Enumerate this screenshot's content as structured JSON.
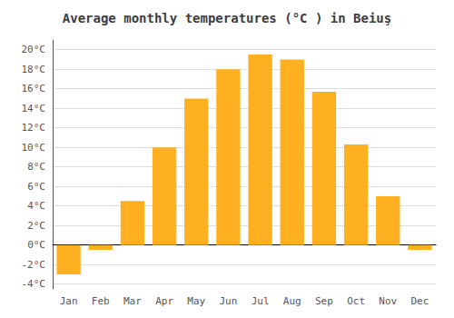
{
  "chart_data": {
    "type": "bar",
    "title": "Average monthly temperatures (°C ) in Beiuş",
    "categories": [
      "Jan",
      "Feb",
      "Mar",
      "Apr",
      "May",
      "Jun",
      "Jul",
      "Aug",
      "Sep",
      "Oct",
      "Nov",
      "Dec"
    ],
    "values": [
      -3.0,
      -0.5,
      4.5,
      10.0,
      15.0,
      18.0,
      19.5,
      19.0,
      15.7,
      10.3,
      5.0,
      -0.5
    ],
    "color": "#FFB020",
    "ylim": [
      -4.5,
      21.0
    ],
    "yticks": [
      {
        "value": -4,
        "label": "-4°C"
      },
      {
        "value": -2,
        "label": "-2°C"
      },
      {
        "value": 0,
        "label": "0°C"
      },
      {
        "value": 2,
        "label": "2°C"
      },
      {
        "value": 4,
        "label": "4°C"
      },
      {
        "value": 6,
        "label": "6°C"
      },
      {
        "value": 8,
        "label": "8°C"
      },
      {
        "value": 10,
        "label": "10°C"
      },
      {
        "value": 12,
        "label": "12°C"
      },
      {
        "value": 14,
        "label": "14°C"
      },
      {
        "value": 16,
        "label": "16°C"
      },
      {
        "value": 18,
        "label": "18°C"
      },
      {
        "value": 20,
        "label": "20°C"
      }
    ],
    "grid": true
  }
}
